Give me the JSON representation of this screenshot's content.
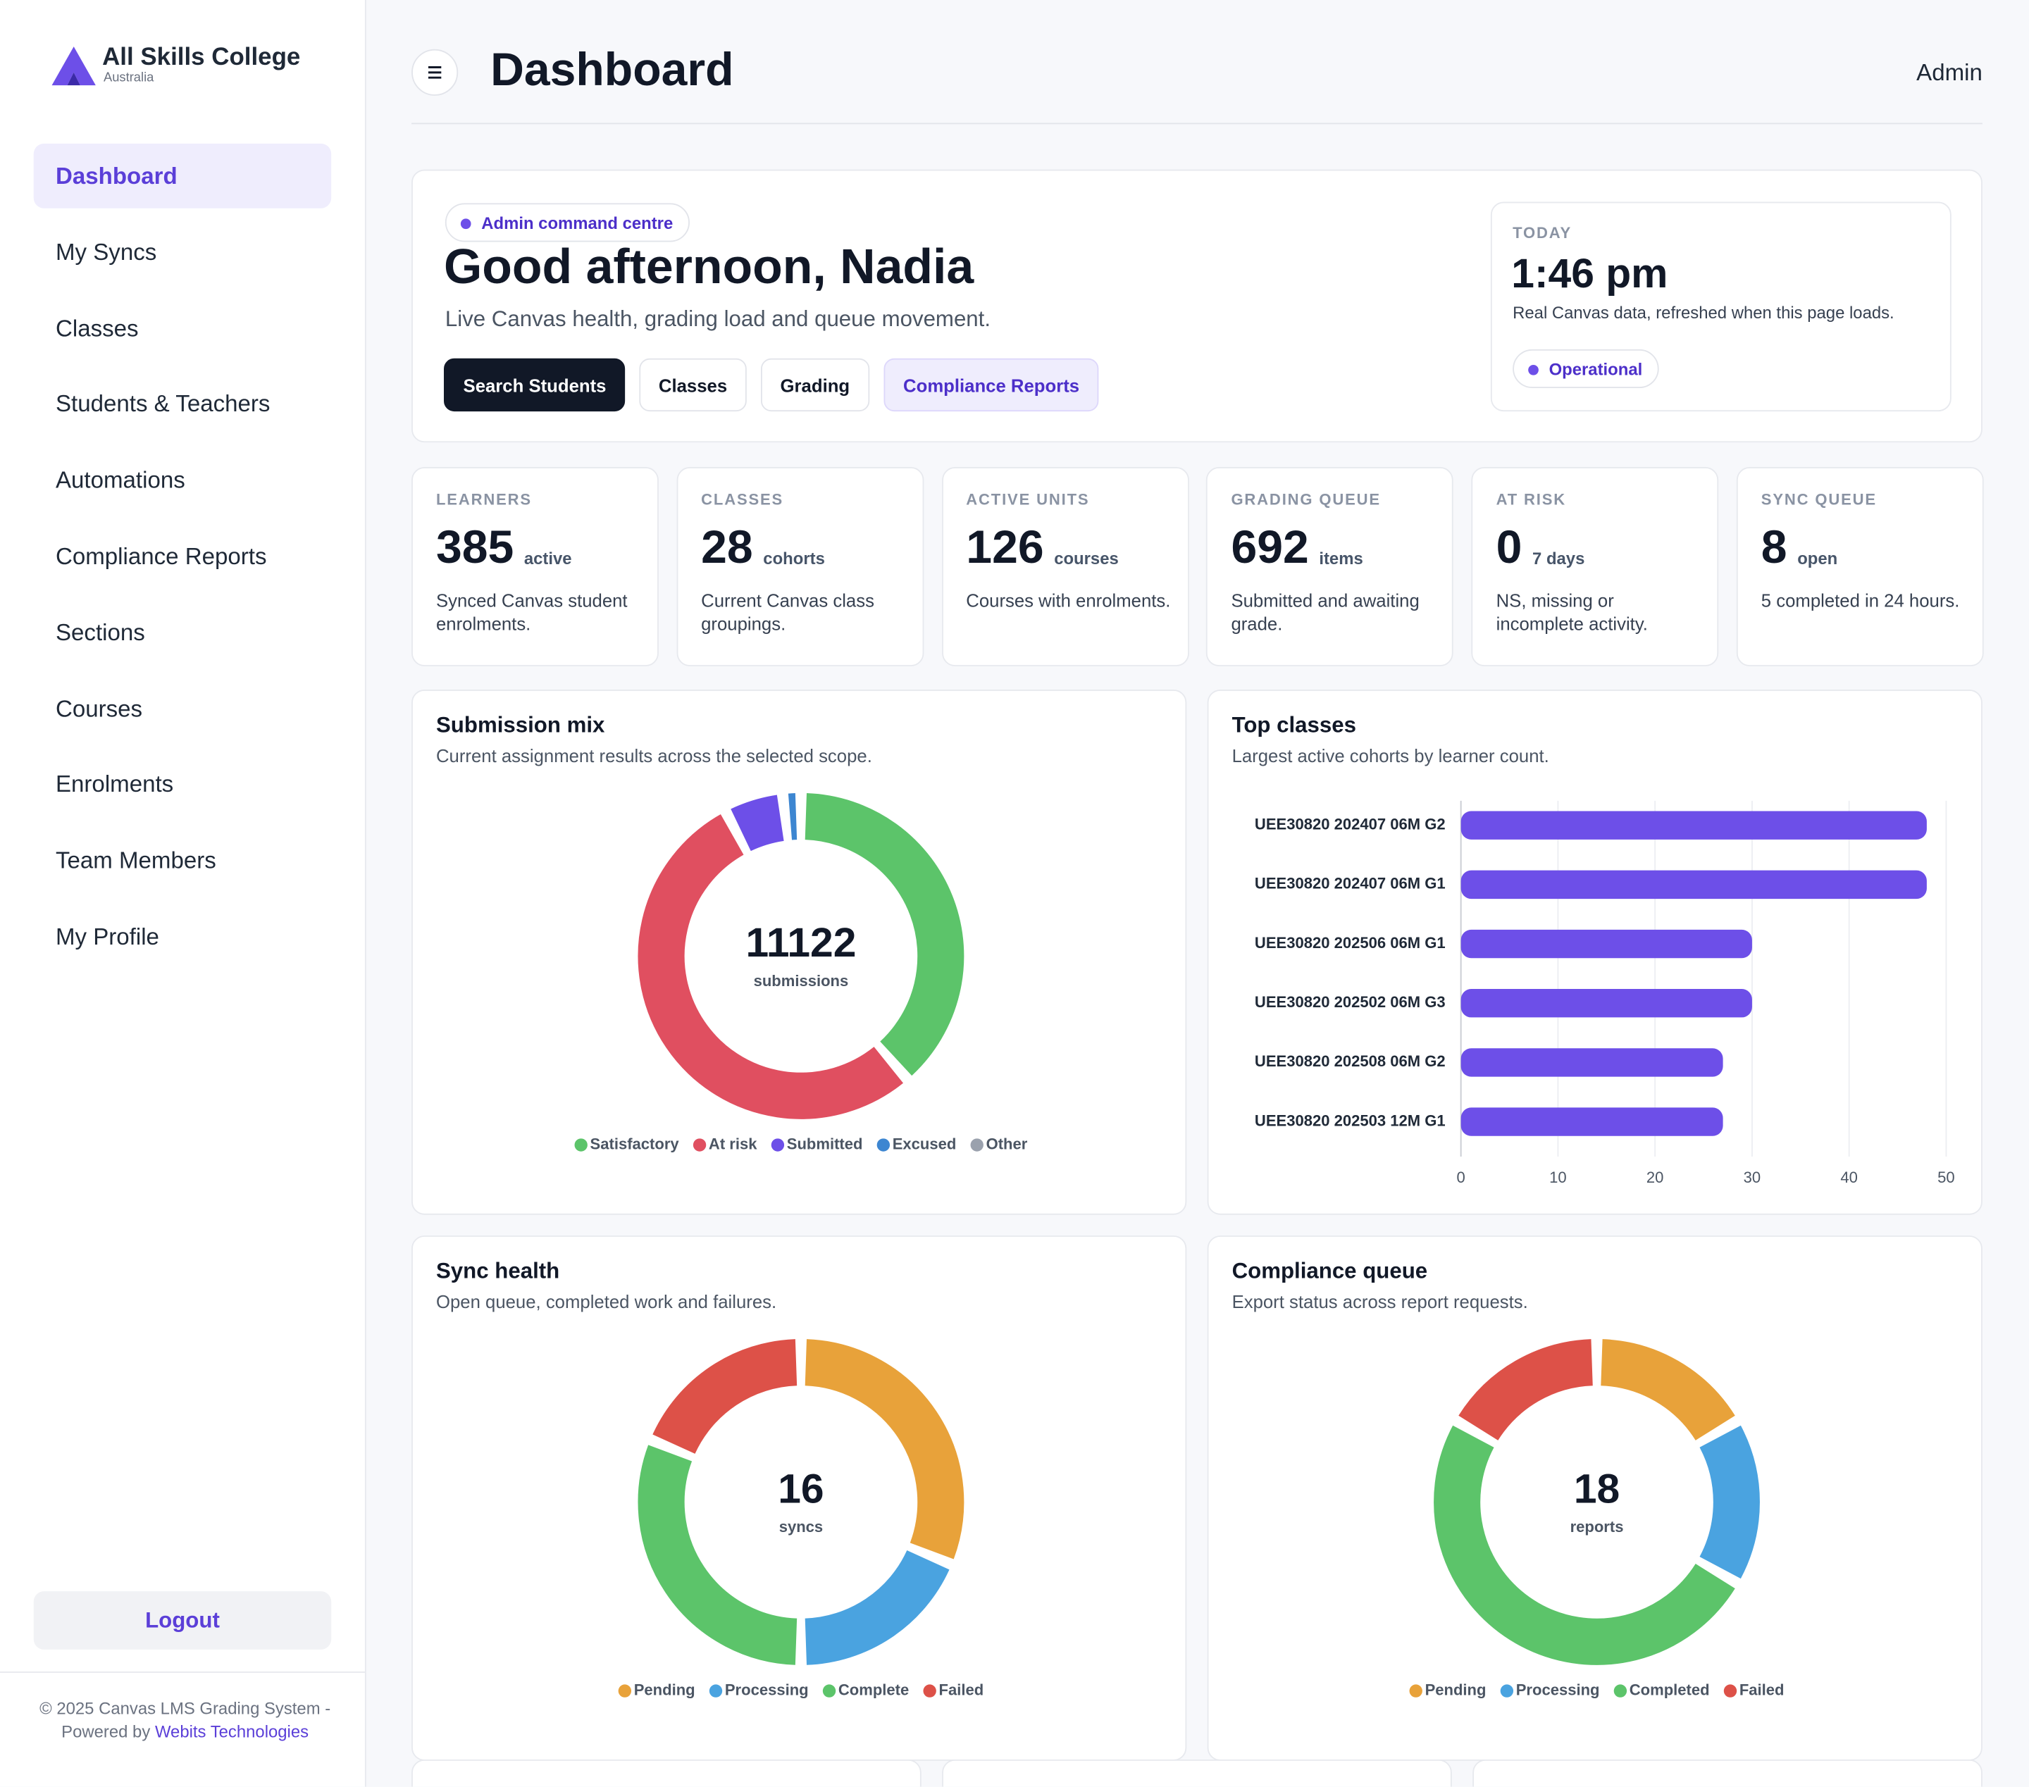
{
  "sidebar": {
    "brand": "All Skills College",
    "brand_sub": "Australia",
    "nav": [
      "Dashboard",
      "My Syncs",
      "Classes",
      "Students & Teachers",
      "Automations",
      "Compliance Reports",
      "Sections",
      "Courses",
      "Enrolments",
      "Team Members",
      "My Profile"
    ],
    "logout": "Logout",
    "footer": "© 2025 Canvas LMS Grading System - Powered by",
    "footer_link": "Webits Technologies"
  },
  "header": {
    "title": "Dashboard",
    "user": "Admin"
  },
  "hero": {
    "badge": "Admin command centre",
    "greeting": "Good afternoon, Nadia",
    "subtitle": "Live Canvas health, grading load and queue movement.",
    "buttons": [
      "Search Students",
      "Classes",
      "Grading",
      "Compliance Reports"
    ],
    "today": {
      "label": "TODAY",
      "time": "1:46 pm",
      "note": "Real Canvas data, refreshed when this page loads.",
      "status": "Operational"
    }
  },
  "kpis": [
    {
      "label": "LEARNERS",
      "value": 385,
      "unit": "active",
      "note": "Synced Canvas student enrolments."
    },
    {
      "label": "CLASSES",
      "value": 28,
      "unit": "cohorts",
      "note": "Current Canvas class groupings."
    },
    {
      "label": "ACTIVE UNITS",
      "value": 126,
      "unit": "courses",
      "note": "Courses with enrolments."
    },
    {
      "label": "GRADING QUEUE",
      "value": 692,
      "unit": "items",
      "note": "Submitted and awaiting grade."
    },
    {
      "label": "AT RISK",
      "value": 0,
      "unit": "7 days",
      "note": "NS, missing or incomplete activity."
    },
    {
      "label": "SYNC QUEUE",
      "value": 8,
      "unit": "open",
      "note": "5 completed in 24 hours."
    }
  ],
  "chart_data": [
    {
      "type": "donut",
      "title": "Submission mix",
      "subtitle": "Current assignment results across the selected scope.",
      "total": 11122,
      "total_label": "submissions",
      "categories": [
        "Satisfactory",
        "At risk",
        "Submitted",
        "Excused",
        "Other"
      ],
      "values": [
        4300,
        5972,
        650,
        200,
        0
      ],
      "colors": [
        "#5cc46a",
        "#e04f60",
        "#6d4fe8",
        "#3d86d1",
        "#9aa1ad"
      ]
    },
    {
      "type": "bar",
      "orientation": "horizontal",
      "title": "Top classes",
      "subtitle": "Largest active cohorts by learner count.",
      "categories": [
        "UEE30820 202407 06M G2",
        "UEE30820 202407 06M G1",
        "UEE30820 202506 06M G1",
        "UEE30820 202502 06M G3",
        "UEE30820 202508 06M G2",
        "UEE30820 202503 12M G1"
      ],
      "values": [
        48,
        48,
        30,
        30,
        27,
        27
      ],
      "color": "#6d4fe8",
      "xlim": [
        0,
        50
      ],
      "xticks": [
        0,
        10,
        20,
        30,
        40,
        50
      ],
      "grid": true
    },
    {
      "type": "donut",
      "title": "Sync health",
      "subtitle": "Open queue, completed work and failures.",
      "total": 16,
      "total_label": "syncs",
      "categories": [
        "Pending",
        "Processing",
        "Complete",
        "Failed"
      ],
      "values": [
        5,
        3,
        5,
        3
      ],
      "colors": [
        "#e8a23a",
        "#4aa3e0",
        "#5cc46a",
        "#dd5148"
      ]
    },
    {
      "type": "donut",
      "title": "Compliance queue",
      "subtitle": "Export status across report requests.",
      "total": 18,
      "total_label": "reports",
      "categories": [
        "Pending",
        "Processing",
        "Completed",
        "Failed"
      ],
      "values": [
        3,
        3,
        9,
        3
      ],
      "colors": [
        "#e8a23a",
        "#4aa3e0",
        "#5cc46a",
        "#dd5148"
      ]
    }
  ]
}
